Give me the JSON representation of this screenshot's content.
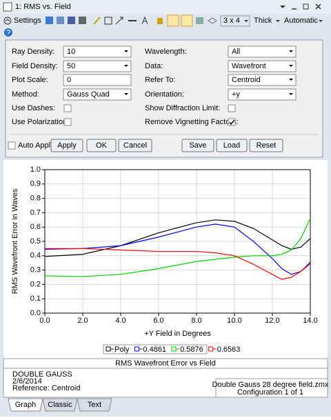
{
  "window": {
    "title": "1: RMS vs. Field"
  },
  "toolbar": {
    "settings": "Settings",
    "layout": "3 x 4",
    "line": "Thick",
    "scale": "Automatic"
  },
  "settings": {
    "left": [
      {
        "label": "Ray Density:",
        "value": "10"
      },
      {
        "label": "Field Density:",
        "value": "50"
      },
      {
        "label": "Plot Scale:",
        "value": "0"
      },
      {
        "label": "Method:",
        "value": "Gauss Quad"
      },
      {
        "label": "Use Dashes:",
        "checked": false
      },
      {
        "label": "Use Polarization:",
        "checked": false
      }
    ],
    "right": [
      {
        "label": "Wavelength:",
        "value": "All"
      },
      {
        "label": "Data:",
        "value": "Wavefront"
      },
      {
        "label": "Refer To:",
        "value": "Centroid"
      },
      {
        "label": "Orientation:",
        "value": "+y"
      },
      {
        "label": "Show Diffraction Limit:",
        "checked": false
      },
      {
        "label": "Remove Vignetting Factors:",
        "checked": true
      }
    ],
    "auto_apply": {
      "label": "Auto Apply",
      "checked": false
    },
    "buttons": [
      "Apply",
      "OK",
      "Cancel",
      "Save",
      "Load",
      "Reset"
    ]
  },
  "chart_data": {
    "type": "line",
    "title": "RMS Wavefront Error vs Field",
    "x_label": "+Y Field in Degrees",
    "y_label": "RMS Wavefront Error in Waves",
    "x": [
      0,
      2,
      4,
      6,
      8,
      9,
      10,
      11,
      12,
      12.5,
      13,
      13.5,
      14
    ],
    "series": [
      {
        "name": "Poly",
        "color": "#000000",
        "values": [
          0.395,
          0.41,
          0.47,
          0.56,
          0.63,
          0.65,
          0.64,
          0.59,
          0.51,
          0.47,
          0.445,
          0.46,
          0.52
        ]
      },
      {
        "name": "0.4861",
        "color": "#0000ff",
        "values": [
          0.445,
          0.45,
          0.47,
          0.53,
          0.6,
          0.62,
          0.6,
          0.5,
          0.38,
          0.31,
          0.27,
          0.29,
          0.355
        ]
      },
      {
        "name": "0.5876",
        "color": "#00cc00",
        "values": [
          0.26,
          0.255,
          0.27,
          0.31,
          0.36,
          0.375,
          0.39,
          0.4,
          0.4,
          0.41,
          0.44,
          0.52,
          0.66
        ]
      },
      {
        "name": "0.6563",
        "color": "#ff0000",
        "values": [
          0.45,
          0.45,
          0.44,
          0.43,
          0.43,
          0.42,
          0.4,
          0.34,
          0.27,
          0.235,
          0.25,
          0.29,
          0.345
        ]
      }
    ],
    "xlim": [
      0,
      14
    ],
    "ylim": [
      0,
      1
    ],
    "xticks": [
      {
        "value": 0,
        "label": "0.0"
      },
      {
        "value": 2,
        "label": "2.0"
      },
      {
        "value": 4,
        "label": "4.0"
      },
      {
        "value": 6,
        "label": "6.0"
      },
      {
        "value": 8,
        "label": "8.0"
      },
      {
        "value": 10,
        "label": "10.0"
      },
      {
        "value": 12,
        "label": "12.0"
      },
      {
        "value": 14,
        "label": "14.0"
      }
    ],
    "yticks": [
      {
        "value": 0,
        "label": "0.0"
      },
      0.1,
      0.2,
      0.3,
      0.4,
      0.5,
      0.6,
      0.7,
      0.8,
      0.9,
      {
        "value": 1,
        "label": "1.0"
      }
    ],
    "grid": true
  },
  "footer": {
    "left": [
      "DOUBLE GAUSS",
      "2/6/2014",
      "Reference: Centroid"
    ],
    "right": [
      "Double Gauss 28 degree field.zmx",
      "Configuration 1 of 1"
    ]
  },
  "tabs": [
    "Graph",
    "Classic",
    "Text"
  ]
}
